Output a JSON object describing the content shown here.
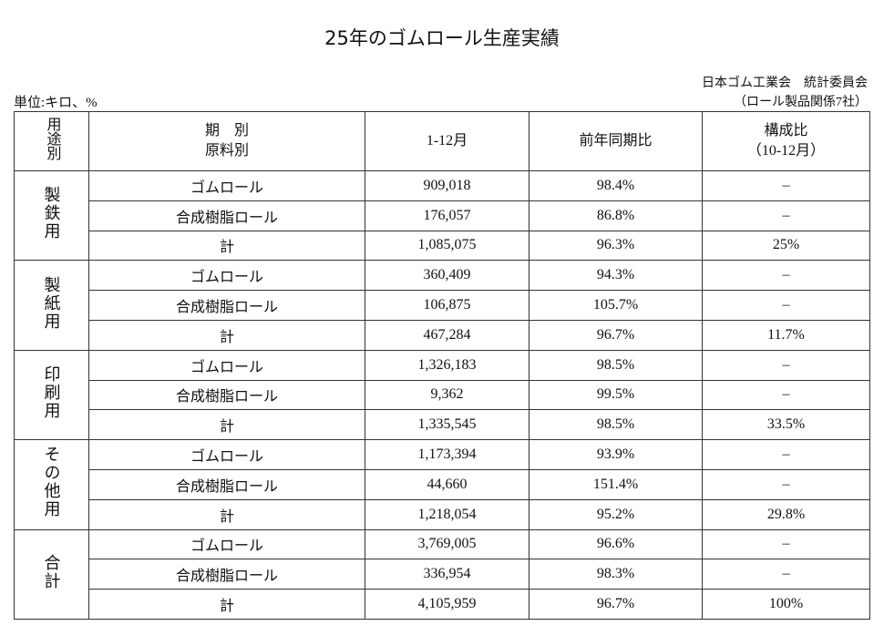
{
  "header": {
    "title": "25年のゴムロール生産実績",
    "org": "日本ゴム工業会　統計委員会",
    "scope": "（ロール製品関係7社）",
    "unit": "単位:キロ、%"
  },
  "table": {
    "columns": [
      "用途別",
      [
        "期　別",
        "原料別"
      ],
      "1-12月",
      "前年同期比",
      [
        "構成比",
        "（10-12月）"
      ]
    ],
    "groups": [
      {
        "label": "製鉄用",
        "rows": [
          [
            "ゴムロール",
            "909,018",
            "98.4%",
            "–"
          ],
          [
            "合成樹脂ロール",
            "176,057",
            "86.8%",
            "–"
          ],
          [
            "計",
            "1,085,075",
            "96.3%",
            "25%"
          ]
        ]
      },
      {
        "label": "製紙用",
        "rows": [
          [
            "ゴムロール",
            "360,409",
            "94.3%",
            "–"
          ],
          [
            "合成樹脂ロール",
            "106,875",
            "105.7%",
            "–"
          ],
          [
            "計",
            "467,284",
            "96.7%",
            "11.7%"
          ]
        ]
      },
      {
        "label": "印刷用",
        "rows": [
          [
            "ゴムロール",
            "1,326,183",
            "98.5%",
            "–"
          ],
          [
            "合成樹脂ロール",
            "9,362",
            "99.5%",
            "–"
          ],
          [
            "計",
            "1,335,545",
            "98.5%",
            "33.5%"
          ]
        ]
      },
      {
        "label": "その他用",
        "rows": [
          [
            "ゴムロール",
            "1,173,394",
            "93.9%",
            "–"
          ],
          [
            "合成樹脂ロール",
            "44,660",
            "151.4%",
            "–"
          ],
          [
            "計",
            "1,218,054",
            "95.2%",
            "29.8%"
          ]
        ]
      },
      {
        "label": "合計",
        "rows": [
          [
            "ゴムロール",
            "3,769,005",
            "96.6%",
            "–"
          ],
          [
            "合成樹脂ロール",
            "336,954",
            "98.3%",
            "–"
          ],
          [
            "計",
            "4,105,959",
            "96.7%",
            "100%"
          ]
        ]
      }
    ]
  }
}
